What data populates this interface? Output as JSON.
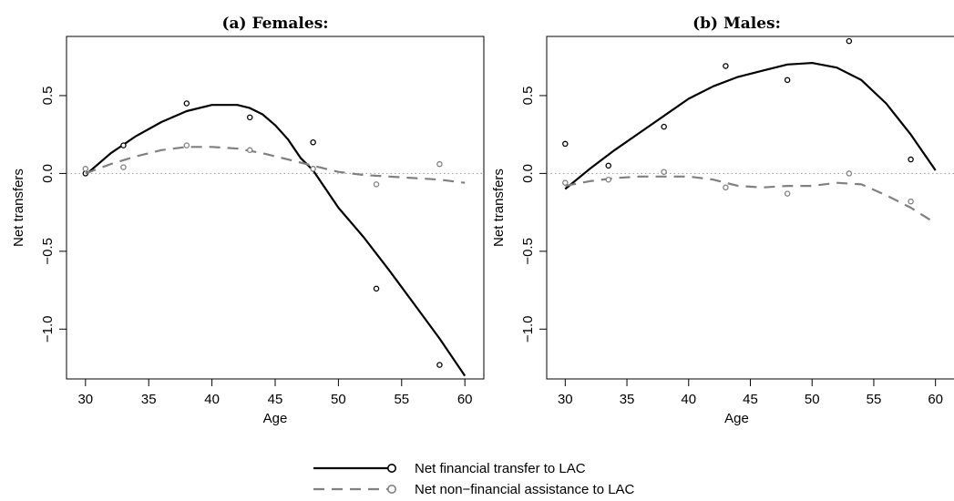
{
  "chart_data": [
    {
      "type": "scatter",
      "title": "(a) Females:",
      "xlabel": "Age",
      "ylabel": "Net transfers",
      "xlim": [
        28.5,
        61.5
      ],
      "ylim": [
        -1.32,
        0.88
      ],
      "xticks": [
        "30",
        "35",
        "40",
        "45",
        "50",
        "55",
        "60"
      ],
      "yticks": [
        "-1.0",
        "-0.5",
        "0.0",
        "0.5"
      ],
      "zero_reference_line": true,
      "series": [
        {
          "name": "Net financial transfer to LAC",
          "color": "#000000",
          "line_style": "solid",
          "points": [
            [
              30,
              0.0
            ],
            [
              33,
              0.18
            ],
            [
              38,
              0.45
            ],
            [
              43,
              0.36
            ],
            [
              48,
              0.2
            ],
            [
              53,
              -0.74
            ],
            [
              58,
              -1.23
            ]
          ],
          "smooth": [
            [
              30,
              -0.01
            ],
            [
              32,
              0.13
            ],
            [
              34,
              0.24
            ],
            [
              36,
              0.33
            ],
            [
              38,
              0.4
            ],
            [
              40,
              0.44
            ],
            [
              42,
              0.44
            ],
            [
              43,
              0.42
            ],
            [
              44,
              0.38
            ],
            [
              45,
              0.31
            ],
            [
              46,
              0.22
            ],
            [
              47,
              0.1
            ],
            [
              48,
              0.02
            ],
            [
              49,
              -0.1
            ],
            [
              50,
              -0.22
            ],
            [
              52,
              -0.41
            ],
            [
              54,
              -0.62
            ],
            [
              56,
              -0.84
            ],
            [
              58,
              -1.06
            ],
            [
              60,
              -1.3
            ]
          ]
        },
        {
          "name": "Net non−financial assistance to LAC",
          "color": "#808080",
          "line_style": "dashed",
          "points": [
            [
              30,
              0.03
            ],
            [
              33,
              0.04
            ],
            [
              38,
              0.18
            ],
            [
              43,
              0.15
            ],
            [
              48,
              0.03
            ],
            [
              53,
              -0.07
            ],
            [
              58,
              0.06
            ]
          ],
          "smooth": [
            [
              30,
              0.0
            ],
            [
              32,
              0.06
            ],
            [
              34,
              0.11
            ],
            [
              36,
              0.15
            ],
            [
              38,
              0.17
            ],
            [
              40,
              0.17
            ],
            [
              42,
              0.16
            ],
            [
              44,
              0.13
            ],
            [
              46,
              0.09
            ],
            [
              48,
              0.05
            ],
            [
              50,
              0.01
            ],
            [
              52,
              -0.01
            ],
            [
              54,
              -0.02
            ],
            [
              56,
              -0.03
            ],
            [
              58,
              -0.04
            ],
            [
              60,
              -0.06
            ]
          ]
        }
      ]
    },
    {
      "type": "scatter",
      "title": "(b) Males:",
      "xlabel": "Age",
      "ylabel": "Net transfers",
      "xlim": [
        28.5,
        61.5
      ],
      "ylim": [
        -1.32,
        0.88
      ],
      "xticks": [
        "30",
        "35",
        "40",
        "45",
        "50",
        "55",
        "60"
      ],
      "yticks": [
        "-1.0",
        "-0.5",
        "0.0",
        "0.5"
      ],
      "zero_reference_line": true,
      "series": [
        {
          "name": "Net financial transfer to LAC",
          "color": "#000000",
          "line_style": "solid",
          "points": [
            [
              30,
              0.19
            ],
            [
              33.5,
              0.05
            ],
            [
              38,
              0.3
            ],
            [
              43,
              0.69
            ],
            [
              48,
              0.6
            ],
            [
              53,
              0.85
            ],
            [
              58,
              0.09
            ]
          ],
          "smooth": [
            [
              30,
              -0.1
            ],
            [
              32,
              0.03
            ],
            [
              34,
              0.15
            ],
            [
              36,
              0.26
            ],
            [
              38,
              0.37
            ],
            [
              40,
              0.48
            ],
            [
              42,
              0.56
            ],
            [
              44,
              0.62
            ],
            [
              46,
              0.66
            ],
            [
              48,
              0.7
            ],
            [
              50,
              0.71
            ],
            [
              52,
              0.68
            ],
            [
              54,
              0.6
            ],
            [
              56,
              0.45
            ],
            [
              58,
              0.25
            ],
            [
              60,
              0.02
            ]
          ]
        },
        {
          "name": "Net non−financial assistance to LAC",
          "color": "#808080",
          "line_style": "dashed",
          "points": [
            [
              30,
              -0.06
            ],
            [
              33.5,
              -0.04
            ],
            [
              38,
              0.01
            ],
            [
              43,
              -0.09
            ],
            [
              48,
              -0.13
            ],
            [
              53,
              0.0
            ],
            [
              58,
              -0.18
            ]
          ],
          "smooth": [
            [
              30,
              -0.08
            ],
            [
              32,
              -0.05
            ],
            [
              34,
              -0.03
            ],
            [
              36,
              -0.02
            ],
            [
              38,
              -0.02
            ],
            [
              40,
              -0.02
            ],
            [
              42,
              -0.04
            ],
            [
              44,
              -0.08
            ],
            [
              46,
              -0.09
            ],
            [
              48,
              -0.08
            ],
            [
              50,
              -0.08
            ],
            [
              52,
              -0.06
            ],
            [
              54,
              -0.07
            ],
            [
              56,
              -0.14
            ],
            [
              58,
              -0.22
            ],
            [
              60,
              -0.32
            ]
          ]
        }
      ]
    }
  ],
  "legend": {
    "placement": "bottom-center",
    "items": [
      {
        "label": "Net financial transfer to LAC",
        "color": "#000000",
        "line_style": "solid"
      },
      {
        "label": "Net non−financial assistance to LAC",
        "color": "#808080",
        "line_style": "dashed"
      }
    ]
  }
}
